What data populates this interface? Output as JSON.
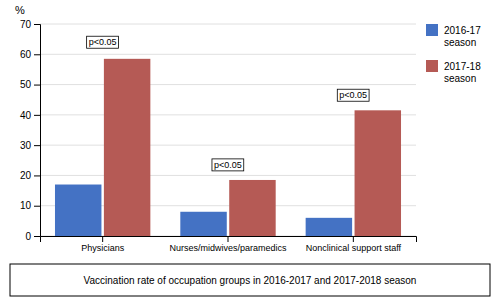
{
  "chart_data": {
    "type": "bar",
    "caption": "Vaccination rate of occupation groups in 2016-2017 and 2017-2018 season",
    "ylabel": "%",
    "categories": [
      "Physicians",
      "Nurses/midwives/paramedics",
      "Nonclinical support staff"
    ],
    "series": [
      {
        "name": "2016-17\nseason",
        "color": "#4472C4",
        "values": [
          17,
          8,
          6
        ]
      },
      {
        "name": "2017-18\nseason",
        "color": "#B55A55",
        "values": [
          58.5,
          18.5,
          41.5
        ]
      }
    ],
    "ylim": [
      0,
      70
    ],
    "yticks": [
      0,
      10,
      20,
      30,
      40,
      50,
      60,
      70
    ],
    "grid": true,
    "legend": "right",
    "annotations": [
      {
        "text": "p<0.05",
        "category": "Physicians",
        "y": 62
      },
      {
        "text": "p<0.05",
        "category": "Nurses/midwives/paramedics",
        "y": 21.5
      },
      {
        "text": "p<0.05",
        "category": "Nonclinical support staff",
        "y": 44.5
      }
    ]
  }
}
